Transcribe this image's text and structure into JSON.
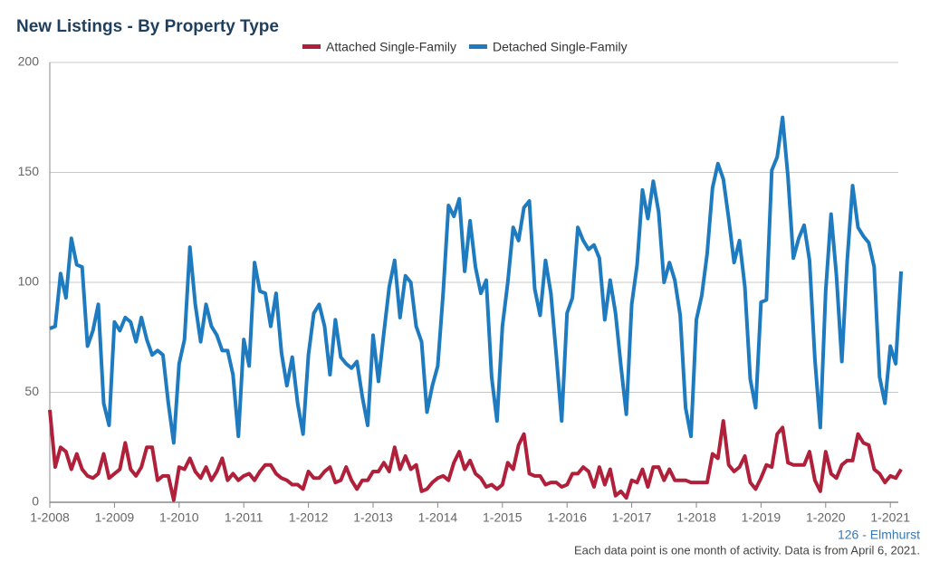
{
  "chart_data": {
    "type": "line",
    "title": "New Listings - By Property Type",
    "annotations": [
      "126 - Elmhurst",
      "Each data point is one month of activity. Data is from April 6, 2021."
    ],
    "categories": [
      "1-2008",
      null,
      null,
      null,
      null,
      null,
      null,
      null,
      null,
      null,
      null,
      null,
      "1-2009",
      null,
      null,
      null,
      null,
      null,
      null,
      null,
      null,
      null,
      null,
      null,
      "1-2010",
      null,
      null,
      null,
      null,
      null,
      null,
      null,
      null,
      null,
      null,
      null,
      "1-2011",
      null,
      null,
      null,
      null,
      null,
      null,
      null,
      null,
      null,
      null,
      null,
      "1-2012",
      null,
      null,
      null,
      null,
      null,
      null,
      null,
      null,
      null,
      null,
      null,
      "1-2013",
      null,
      null,
      null,
      null,
      null,
      null,
      null,
      null,
      null,
      null,
      null,
      "1-2014",
      null,
      null,
      null,
      null,
      null,
      null,
      null,
      null,
      null,
      null,
      null,
      "1-2015",
      null,
      null,
      null,
      null,
      null,
      null,
      null,
      null,
      null,
      null,
      null,
      "1-2016",
      null,
      null,
      null,
      null,
      null,
      null,
      null,
      null,
      null,
      null,
      null,
      "1-2017",
      null,
      null,
      null,
      null,
      null,
      null,
      null,
      null,
      null,
      null,
      null,
      "1-2018",
      null,
      null,
      null,
      null,
      null,
      null,
      null,
      null,
      null,
      null,
      null,
      "1-2019",
      null,
      null,
      null,
      null,
      null,
      null,
      null,
      null,
      null,
      null,
      null,
      "1-2020",
      null,
      null,
      null,
      null,
      null,
      null,
      null,
      null,
      null,
      null,
      null,
      "1-2021",
      null,
      null
    ],
    "series": [
      {
        "name": "Attached Single-Family",
        "color": "#b0203a",
        "values": [
          42,
          16,
          25,
          23,
          15,
          22,
          15,
          12,
          11,
          13,
          22,
          11,
          13,
          15,
          27,
          15,
          12,
          16,
          25,
          25,
          10,
          12,
          12,
          1,
          16,
          15,
          20,
          14,
          11,
          16,
          10,
          14,
          20,
          10,
          13,
          10,
          12,
          13,
          10,
          14,
          17,
          17,
          13,
          11,
          10,
          8,
          8,
          6,
          14,
          11,
          11,
          14,
          16,
          9,
          10,
          16,
          10,
          6,
          10,
          10,
          14,
          14,
          18,
          14,
          25,
          15,
          21,
          15,
          17,
          5,
          6,
          9,
          11,
          12,
          10,
          18,
          23,
          15,
          19,
          13,
          11,
          7,
          8,
          6,
          8,
          18,
          15,
          26,
          31,
          13,
          12,
          12,
          8,
          9,
          9,
          7,
          8,
          13,
          13,
          16,
          14,
          7,
          16,
          8,
          15,
          3,
          5,
          2,
          10,
          9,
          15,
          7,
          16,
          16,
          10,
          15,
          10,
          10,
          10,
          9,
          9,
          9,
          9,
          22,
          20,
          37,
          17,
          14,
          16,
          21,
          9,
          6,
          11,
          17,
          16,
          31,
          34,
          18,
          17,
          17,
          17,
          23,
          10,
          5,
          23,
          13,
          11,
          17,
          19,
          19,
          31,
          27,
          26,
          15,
          13,
          9,
          12,
          11,
          15
        ]
      },
      {
        "name": "Detached Single-Family",
        "color": "#1f7bbf",
        "values": [
          79,
          80,
          104,
          93,
          120,
          108,
          107,
          71,
          78,
          90,
          45,
          35,
          82,
          78,
          84,
          82,
          73,
          84,
          74,
          67,
          69,
          67,
          45,
          27,
          63,
          74,
          116,
          90,
          73,
          90,
          80,
          76,
          69,
          69,
          58,
          30,
          74,
          62,
          109,
          96,
          95,
          80,
          95,
          68,
          53,
          66,
          45,
          31,
          67,
          86,
          90,
          80,
          58,
          83,
          66,
          63,
          61,
          64,
          48,
          35,
          76,
          55,
          77,
          98,
          110,
          84,
          103,
          100,
          80,
          73,
          41,
          53,
          62,
          95,
          135,
          130,
          138,
          105,
          128,
          107,
          95,
          101,
          57,
          37,
          80,
          100,
          125,
          119,
          134,
          137,
          97,
          85,
          110,
          95,
          67,
          37,
          86,
          93,
          125,
          119,
          115,
          117,
          111,
          83,
          101,
          86,
          62,
          40,
          90,
          108,
          142,
          129,
          146,
          132,
          100,
          109,
          101,
          85,
          43,
          30,
          83,
          94,
          113,
          143,
          154,
          147,
          129,
          109,
          119,
          98,
          56,
          43,
          91,
          92,
          151,
          157,
          175,
          148,
          111,
          120,
          126,
          110,
          65,
          34,
          96,
          131,
          103,
          64,
          110,
          144,
          125,
          121,
          118,
          107,
          57,
          45,
          71,
          63,
          105
        ]
      }
    ],
    "ylim": [
      0,
      200
    ],
    "yticks": [
      0,
      50,
      100,
      150,
      200
    ],
    "grid": true
  }
}
